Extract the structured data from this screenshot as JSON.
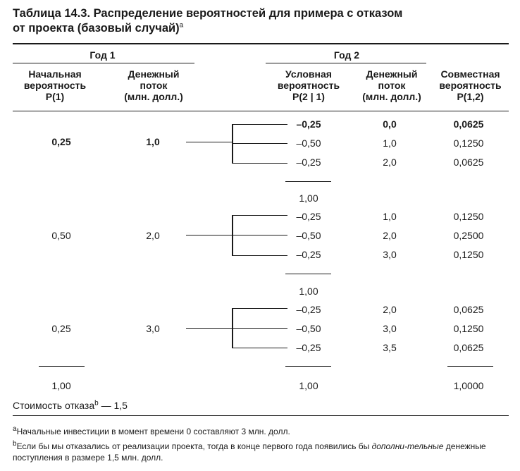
{
  "title": {
    "line1": "Таблица 14.3. Распределение вероятностей для примера с отказом",
    "line2": "от проекта  (базовый случай)",
    "sup": "a"
  },
  "header": {
    "year1": "Год 1",
    "year2": "Год 2",
    "col_initial_prob": [
      "Начальная",
      "вероятность",
      "P(1)"
    ],
    "col_cash1": [
      "Денежный",
      "поток",
      "(млн. долл.)"
    ],
    "col_cond_prob": [
      "Условная",
      "вероятность",
      "P(2 | 1)"
    ],
    "col_cash2": [
      "Денежный",
      "поток",
      "(млн. долл.)"
    ],
    "col_joint_prob": [
      "Совместная",
      "вероятность",
      "P(1,2)"
    ]
  },
  "groups": [
    {
      "p1": "0,25",
      "cf1": "1,0",
      "bold": true,
      "rows": [
        {
          "p21": "–0,25",
          "cf2": "0,0",
          "p12": "0,0625",
          "bold": true
        },
        {
          "p21": "–0,50",
          "cf2": "1,0",
          "p12": "0,1250",
          "bold": false
        },
        {
          "p21": "–0,25",
          "cf2": "2,0",
          "p12": "0,0625",
          "bold": false
        }
      ],
      "subtotal": "1,00"
    },
    {
      "p1": "0,50",
      "cf1": "2,0",
      "bold": false,
      "rows": [
        {
          "p21": "–0,25",
          "cf2": "1,0",
          "p12": "0,1250",
          "bold": false
        },
        {
          "p21": "–0,50",
          "cf2": "2,0",
          "p12": "0,2500",
          "bold": false
        },
        {
          "p21": "–0,25",
          "cf2": "3,0",
          "p12": "0,1250",
          "bold": false
        }
      ],
      "subtotal": "1,00"
    },
    {
      "p1": "0,25",
      "cf1": "3,0",
      "bold": false,
      "rows": [
        {
          "p21": "–0,25",
          "cf2": "2,0",
          "p12": "0,0625",
          "bold": false
        },
        {
          "p21": "–0,50",
          "cf2": "3,0",
          "p12": "0,1250",
          "bold": false
        },
        {
          "p21": "–0,25",
          "cf2": "3,5",
          "p12": "0,0625",
          "bold": false
        }
      ]
    }
  ],
  "totals": {
    "p1": "1,00",
    "p21": "1,00",
    "p12": "1,0000"
  },
  "abandon_cost": {
    "text": "Стоимость отказа",
    "sup": "b",
    "value": " — 1,5"
  },
  "footnotes": {
    "a_mark": "a",
    "a": "Начальные инвестиции в момент времени 0 составляют 3 млн. долл.",
    "b_mark": "b",
    "b_part1": "Если бы мы отказались от реализации проекта, тогда в конце первого года появились бы ",
    "b_italic": "дополни-тельные",
    "b_part2": " денежные поступления в размере 1,5 млн. долл."
  }
}
